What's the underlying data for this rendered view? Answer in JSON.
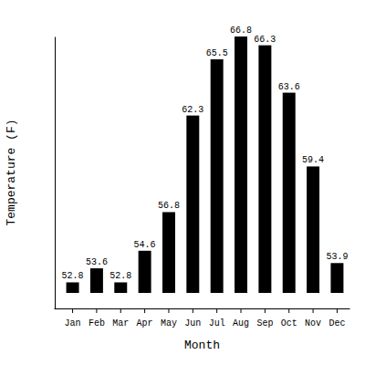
{
  "chart_data": {
    "type": "bar",
    "x_label": "Month",
    "y_label": "Temperature (F)",
    "categories": [
      "Jan",
      "Feb",
      "Mar",
      "Apr",
      "May",
      "Jun",
      "Jul",
      "Aug",
      "Sep",
      "Oct",
      "Nov",
      "Dec"
    ],
    "values": [
      52.8,
      53.6,
      52.8,
      54.6,
      56.8,
      62.3,
      65.5,
      66.8,
      66.3,
      63.6,
      59.4,
      53.9
    ],
    "color": "#000000",
    "ylim": [
      52.2,
      66.8
    ],
    "yticks": [],
    "tick_labels": "x",
    "data_labels": true,
    "grid": false
  }
}
